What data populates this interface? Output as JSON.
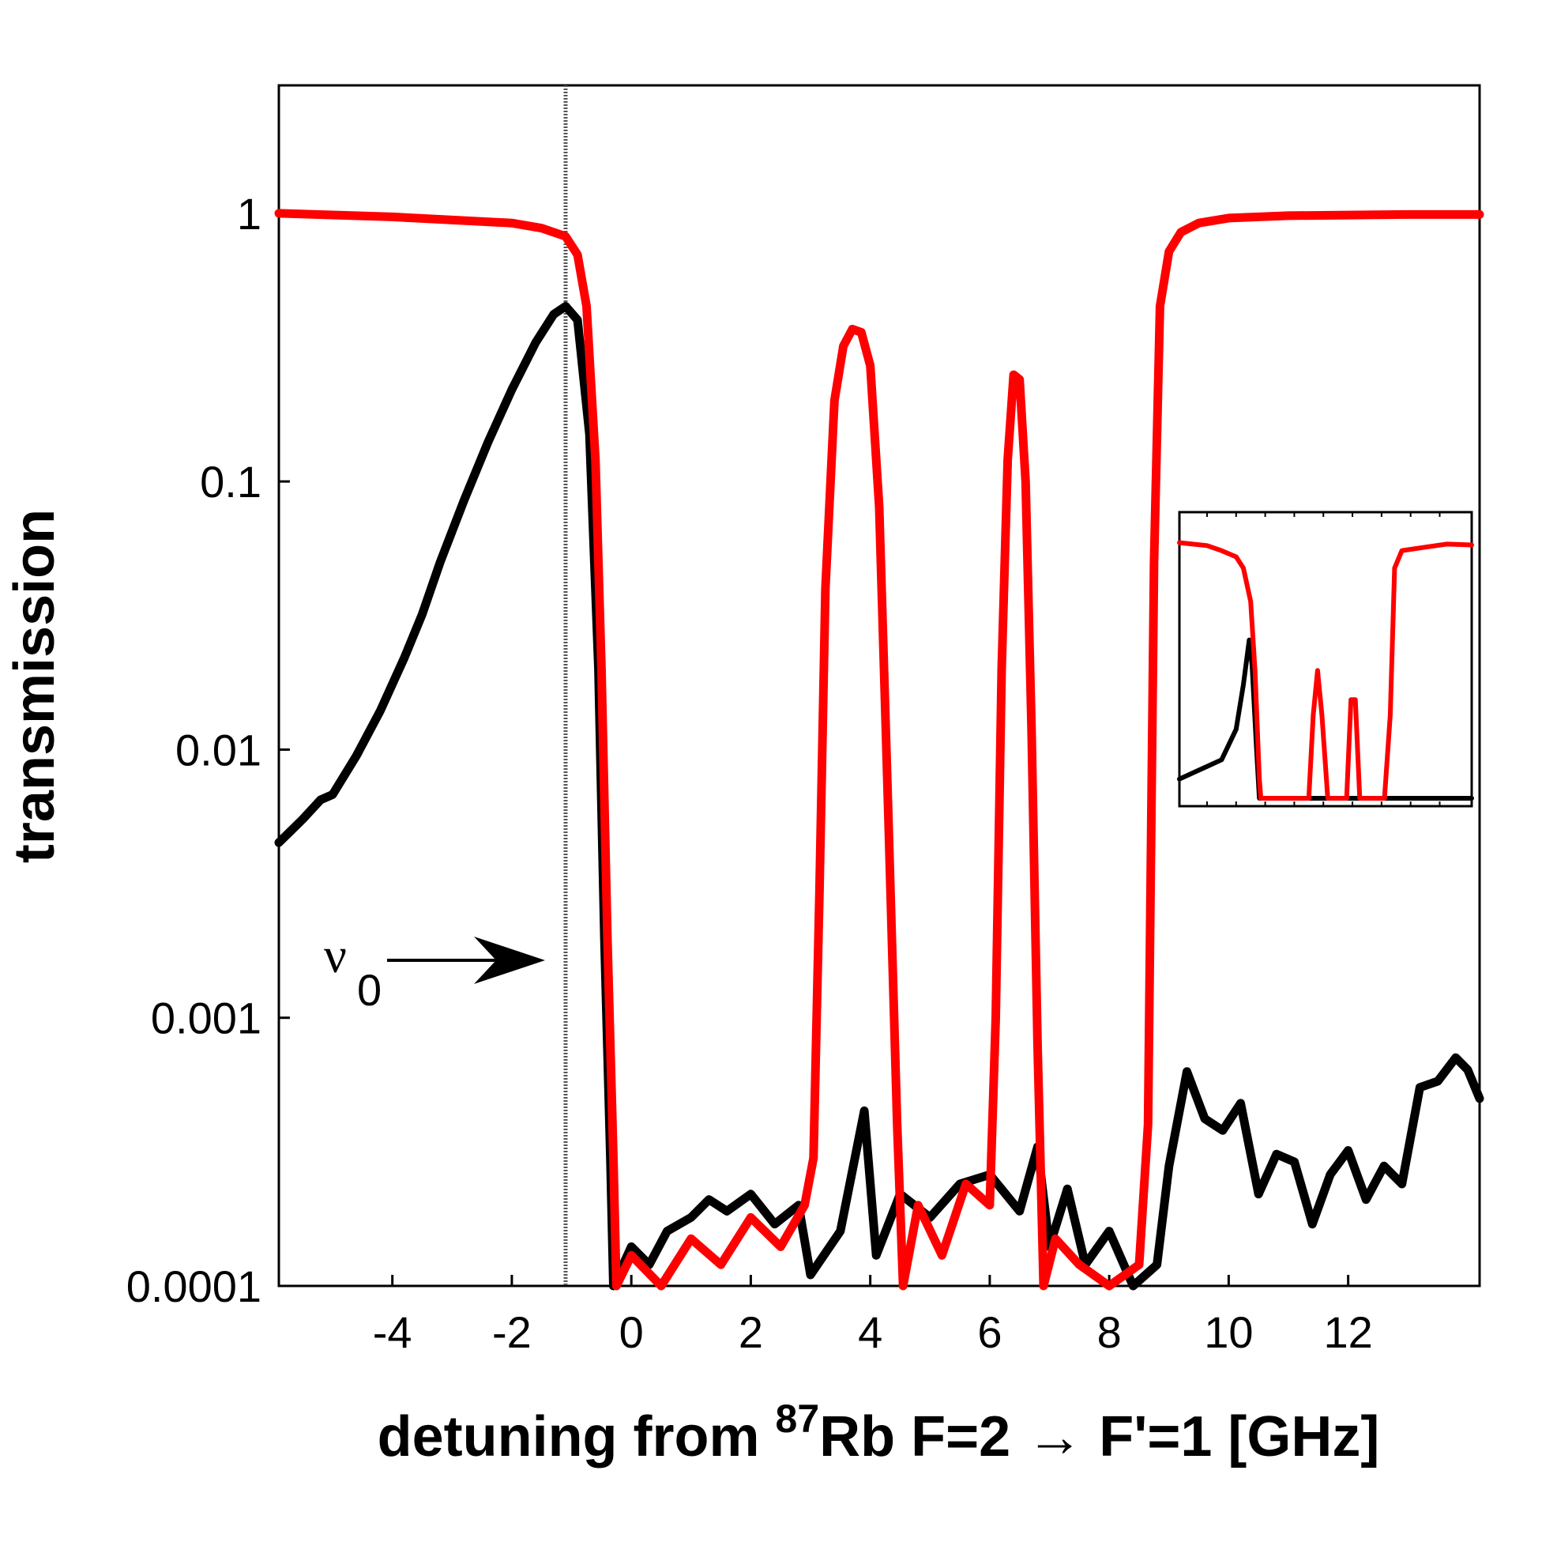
{
  "chart_data": {
    "type": "line",
    "title": "",
    "xlabel_parts": {
      "prefix": "detuning from ",
      "isotope": "87",
      "suffix": "Rb F=2 → F'=1 [GHz]"
    },
    "ylabel": "transmission",
    "xlim": [
      -5.9,
      14.2
    ],
    "ylim": [
      0.0001,
      3
    ],
    "yscale": "log",
    "xticks": [
      -4,
      -2,
      0,
      2,
      4,
      6,
      8,
      10,
      12
    ],
    "xtick_labels": [
      "-4",
      "-2",
      "0",
      "2",
      "4",
      "6",
      "8",
      "10",
      "12"
    ],
    "yticks": [
      0.0001,
      0.001,
      0.01,
      0.1,
      1
    ],
    "ytick_labels": [
      "0.0001",
      "0.001",
      "0.01",
      "0.1",
      "1"
    ],
    "grid": false,
    "reference_line": {
      "x": -1.1,
      "label": "ν",
      "label_sub": "0"
    },
    "series": [
      {
        "name": "black",
        "color": "#000000",
        "x": [
          -5.9,
          -5.5,
          -5.2,
          -5.0,
          -4.6,
          -4.2,
          -3.8,
          -3.5,
          -3.2,
          -2.8,
          -2.4,
          -2.0,
          -1.6,
          -1.3,
          -1.1,
          -0.9,
          -0.7,
          -0.55,
          -0.45,
          -0.35,
          -0.3,
          0.0,
          0.3,
          0.6,
          1.0,
          1.3,
          1.6,
          2.0,
          2.4,
          2.8,
          3.0,
          3.5,
          3.9,
          4.1,
          4.5,
          5.0,
          5.5,
          6.0,
          6.5,
          6.8,
          7.0,
          7.3,
          7.6,
          8.0,
          8.4,
          8.8,
          9.0,
          9.3,
          9.6,
          9.9,
          10.2,
          10.5,
          10.8,
          11.1,
          11.4,
          11.7,
          12.0,
          12.3,
          12.6,
          12.9,
          13.2,
          13.5,
          13.8,
          14.0,
          14.2
        ],
        "values": [
          0.0045,
          0.0055,
          0.0065,
          0.0068,
          0.0095,
          0.014,
          0.022,
          0.032,
          0.05,
          0.085,
          0.14,
          0.22,
          0.33,
          0.42,
          0.45,
          0.4,
          0.15,
          0.02,
          0.002,
          0.0003,
          0.0001,
          0.00014,
          0.00012,
          0.00016,
          0.00018,
          0.00021,
          0.00019,
          0.00022,
          0.00017,
          0.0002,
          0.00011,
          0.00016,
          0.00045,
          0.00013,
          0.00022,
          0.00018,
          0.00024,
          0.00026,
          0.00019,
          0.00033,
          0.00014,
          0.00023,
          0.00012,
          0.00016,
          0.0001,
          0.00012,
          0.00028,
          0.00063,
          0.00042,
          0.00038,
          0.00048,
          0.00022,
          0.00031,
          0.00029,
          0.00017,
          0.00026,
          0.00032,
          0.00021,
          0.00028,
          0.00024,
          0.00055,
          0.00058,
          0.00071,
          0.00064,
          0.0005
        ]
      },
      {
        "name": "red",
        "color": "#ff0000",
        "x": [
          -5.9,
          -4.0,
          -2.0,
          -1.5,
          -1.1,
          -0.9,
          -0.75,
          -0.6,
          -0.5,
          -0.4,
          -0.3,
          -0.25,
          0.0,
          0.5,
          1.0,
          1.5,
          2.0,
          2.5,
          2.9,
          3.05,
          3.15,
          3.25,
          3.4,
          3.55,
          3.7,
          3.85,
          4.0,
          4.15,
          4.3,
          4.45,
          4.55,
          4.8,
          5.2,
          5.6,
          6.0,
          6.1,
          6.2,
          6.3,
          6.4,
          6.5,
          6.6,
          6.7,
          6.8,
          6.9,
          7.1,
          7.5,
          8.0,
          8.5,
          8.65,
          8.75,
          8.85,
          9.0,
          9.2,
          9.5,
          10.0,
          11.0,
          12.0,
          13.0,
          14.2
        ],
        "values": [
          1.0,
          0.97,
          0.92,
          0.88,
          0.82,
          0.7,
          0.45,
          0.12,
          0.02,
          0.002,
          0.0003,
          0.0001,
          0.00013,
          0.0001,
          0.00015,
          0.00012,
          0.00018,
          0.00014,
          0.0002,
          0.0003,
          0.003,
          0.04,
          0.2,
          0.32,
          0.37,
          0.36,
          0.27,
          0.08,
          0.006,
          0.0004,
          0.0001,
          0.0002,
          0.00013,
          0.00024,
          0.0002,
          0.001,
          0.02,
          0.12,
          0.25,
          0.24,
          0.1,
          0.012,
          0.0008,
          0.0001,
          0.00015,
          0.00012,
          0.0001,
          0.00012,
          0.0004,
          0.05,
          0.45,
          0.72,
          0.85,
          0.92,
          0.96,
          0.98,
          0.985,
          0.99,
          0.99
        ]
      }
    ],
    "inset": {
      "description_free": true,
      "xlim": [
        -5.9,
        14.2
      ],
      "yscale": "log",
      "ylim": [
        0.0001,
        3
      ],
      "series": [
        {
          "name": "black",
          "color": "#000000",
          "x": [
            -5.9,
            -3.0,
            -2.0,
            -1.5,
            -1.1,
            -0.9,
            -0.6,
            -0.4,
            14.2
          ],
          "values": [
            0.0002,
            0.0004,
            0.0012,
            0.006,
            0.03,
            0.012,
            0.0006,
            0.0001,
            0.0001
          ]
        },
        {
          "name": "red",
          "color": "#ff0000",
          "x": [
            -5.9,
            -4.0,
            -3.0,
            -2.0,
            -1.5,
            -1.0,
            -0.7,
            -0.4,
            -0.3,
            3.0,
            3.3,
            3.6,
            3.9,
            4.3,
            5.6,
            5.9,
            6.2,
            6.5,
            8.2,
            8.6,
            8.9,
            9.4,
            11.0,
            12.5,
            14.2
          ],
          "values": [
            1.0,
            0.9,
            0.75,
            0.6,
            0.4,
            0.12,
            0.01,
            0.0002,
            0.0001,
            0.0001,
            0.002,
            0.01,
            0.002,
            0.0001,
            0.0001,
            0.0035,
            0.0035,
            0.0001,
            0.0001,
            0.002,
            0.4,
            0.75,
            0.85,
            0.95,
            0.92
          ]
        }
      ]
    }
  }
}
